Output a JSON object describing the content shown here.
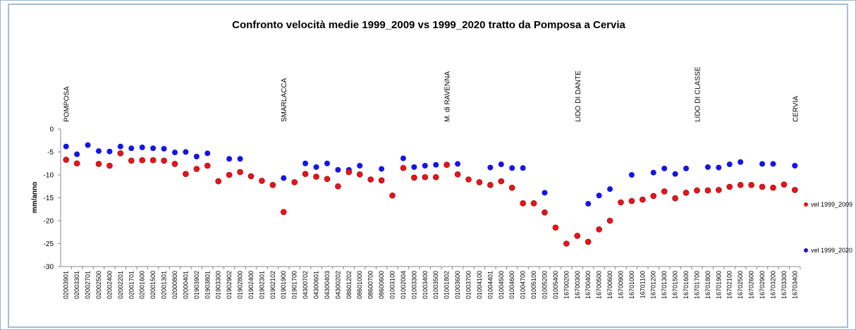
{
  "chart_data": {
    "type": "scatter",
    "title": "Confronto velocità medie 1999_2009 vs 1999_2020 tratto da Pomposa a Cervia",
    "y_label": "mm/anno",
    "categories": [
      "02003901",
      "02003301",
      "02002701",
      "02002500",
      "02002400",
      "02002201",
      "02001701",
      "02001600",
      "02001500",
      "02001301",
      "02000800",
      "02000401",
      "01903902",
      "01903801",
      "01903300",
      "01902902",
      "01902800",
      "01902400",
      "01902301",
      "01902102",
      "01901900",
      "01901700",
      "04300702",
      "04300601",
      "04300403",
      "04300202",
      "08601202",
      "08601000",
      "08600700",
      "08600600",
      "01003100",
      "01002004",
      "01003300",
      "01003400",
      "01003500",
      "01001802",
      "01003600",
      "01003700",
      "01004100",
      "01004401",
      "01004500",
      "01004600",
      "01004700",
      "01005100",
      "01005200",
      "01005400",
      "16700200",
      "16700300",
      "16700400",
      "16700500",
      "16700600",
      "16700900",
      "16701000",
      "16701100",
      "16701200",
      "16701300",
      "16701500",
      "16701600",
      "16701700",
      "16701800",
      "16701900",
      "16702100",
      "16702500",
      "16702600",
      "16702900",
      "16703200",
      "16703300",
      "16703400"
    ],
    "series": [
      {
        "name": "vel 1999_2009",
        "color": "#e8141a",
        "values": [
          -6.7,
          -7.5,
          null,
          -7.6,
          -8,
          -5.3,
          -6.9,
          -6.8,
          -6.8,
          -6.9,
          -7.6,
          -9.8,
          -8.7,
          -8,
          -11.4,
          -10,
          -9.4,
          -10.3,
          -11.3,
          -12.2,
          -18.1,
          -11.6,
          -9.8,
          -10.4,
          -10.9,
          -12.5,
          -9.4,
          -9.9,
          -11,
          -11.2,
          -14.5,
          -8.5,
          -10.6,
          -10.5,
          -10.5,
          -7.8,
          -9.9,
          -11,
          -11.6,
          -12.2,
          -11.4,
          -12.8,
          -16.2,
          -16.2,
          -18.2,
          -21.5,
          -25,
          -23.3,
          -24.6,
          -21.9,
          -20,
          -16,
          -15.7,
          -15.4,
          -14.6,
          -13.6,
          -15.1,
          -13.9,
          -13.4,
          -13.4,
          -13.3,
          -12.6,
          -12.2,
          -12.2,
          -12.6,
          -12.8,
          -12.1,
          -13.3
        ]
      },
      {
        "name": "vel 1999_2020",
        "color": "#1414e6",
        "values": [
          -3.8,
          -5.5,
          -3.5,
          -4.8,
          -4.9,
          -3.8,
          -4.2,
          -4,
          -4.2,
          -4.3,
          -5.1,
          -5,
          -6,
          -5.3,
          null,
          -6.5,
          -6.5,
          null,
          null,
          null,
          -10.7,
          null,
          -7.5,
          -8.3,
          -7.5,
          -8.9,
          -8.9,
          -8,
          null,
          -8.7,
          null,
          -6.4,
          -8.3,
          -8,
          -7.8,
          null,
          -7.6,
          null,
          null,
          -8.4,
          -7.7,
          -8.5,
          -8.5,
          null,
          -13.9,
          null,
          null,
          null,
          -16.3,
          -14.5,
          -13.1,
          null,
          -10,
          null,
          -9.5,
          -8.6,
          -9.8,
          -8.6,
          null,
          -8.3,
          -8.4,
          -7.7,
          -7.2,
          null,
          -7.6,
          -7.6,
          null,
          -8
        ]
      }
    ],
    "annotations": [
      {
        "text": "POMPOSA",
        "category": "02003901"
      },
      {
        "text": "SMARLACCA",
        "category": "01901900"
      },
      {
        "text": "M. di RAVENNA",
        "category": "01001802"
      },
      {
        "text": "LIDO DI DANTE",
        "category": "16700300"
      },
      {
        "text": "LIDO DI CLASSE",
        "category": "16701700"
      },
      {
        "text": "CERVIA",
        "category": "16703400"
      }
    ],
    "ylim": [
      -30,
      0
    ],
    "yticks": [
      -30,
      -25,
      -20,
      -15,
      -10,
      -5,
      0
    ],
    "grid": false,
    "legend": "right"
  }
}
